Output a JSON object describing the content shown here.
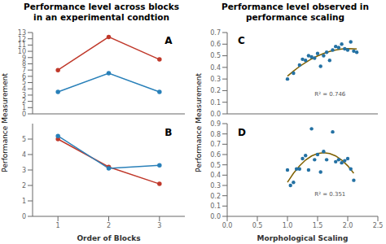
{
  "chart_data": [
    {
      "type": "line",
      "title": "Performance level across blocks\nin an experimental condtion",
      "ylabel": "Performance Measurement",
      "annotations": [
        "A"
      ],
      "tick_labels": "y",
      "series": [
        {
          "color": "#c0392b",
          "marker": "circle",
          "x": [
            1,
            2,
            3
          ],
          "values": [
            7.0,
            12.3,
            8.7
          ]
        },
        {
          "color": "#2980b9",
          "marker": "circle",
          "x": [
            1,
            2,
            3
          ],
          "values": [
            3.5,
            6.5,
            3.5
          ]
        }
      ],
      "xlim": [
        0.5,
        3.5
      ],
      "xticks": [
        1,
        2,
        3
      ],
      "ylim": [
        0,
        13
      ],
      "yticks": [
        0,
        1,
        2,
        3,
        4,
        5,
        6,
        7,
        8,
        9,
        10,
        11,
        12,
        13
      ]
    },
    {
      "type": "line",
      "xlabel": "Order of Blocks",
      "annotations": [
        "B"
      ],
      "series": [
        {
          "color": "#c0392b",
          "marker": "circle",
          "x": [
            1,
            2,
            3
          ],
          "values": [
            5.0,
            3.2,
            2.1
          ]
        },
        {
          "color": "#2980b9",
          "marker": "circle",
          "x": [
            1,
            2,
            3
          ],
          "values": [
            5.2,
            3.1,
            3.3
          ]
        }
      ],
      "xlim": [
        0.5,
        3.5
      ],
      "xticks": [
        1,
        2,
        3
      ],
      "ylim": [
        0,
        6
      ],
      "yticks": [
        0,
        1,
        2,
        3,
        4,
        5
      ]
    },
    {
      "type": "scatter",
      "title": "Performance level observed in\nperformance scaling",
      "ylabel": "Performance Measurement",
      "annotations": [
        "C",
        "R² = 0.746"
      ],
      "tick_labels": "y",
      "series": [
        {
          "type": "scatter",
          "color": "#2471a3",
          "x": [
            1.0,
            1.1,
            1.2,
            1.25,
            1.3,
            1.35,
            1.4,
            1.45,
            1.5,
            1.55,
            1.6,
            1.65,
            1.7,
            1.75,
            1.8,
            1.85,
            1.9,
            1.95,
            2.0,
            2.05,
            2.1,
            2.15
          ],
          "values": [
            0.3,
            0.35,
            0.42,
            0.47,
            0.46,
            0.5,
            0.49,
            0.48,
            0.52,
            0.41,
            0.5,
            0.53,
            0.46,
            0.55,
            0.58,
            0.57,
            0.6,
            0.56,
            0.55,
            0.62,
            0.54,
            0.53
          ]
        },
        {
          "type": "line",
          "color": "#7f6000",
          "x": [
            1.0,
            1.1,
            1.2,
            1.3,
            1.4,
            1.5,
            1.6,
            1.7,
            1.8,
            1.9,
            2.0,
            2.1,
            2.15
          ],
          "values": [
            0.3249,
            0.3686,
            0.4078,
            0.4425,
            0.4728,
            0.4987,
            0.5201,
            0.5371,
            0.5497,
            0.5578,
            0.5614,
            0.5607,
            0.5586
          ]
        }
      ],
      "xlim": [
        0,
        2.5
      ],
      "xticks": [
        {
          "value": 0,
          "label": "0.0"
        },
        0.5,
        {
          "value": 1,
          "label": "1.0"
        },
        1.5,
        {
          "value": 2,
          "label": "2.0"
        },
        2.5
      ],
      "ylim": [
        0,
        0.7
      ],
      "yticks": [
        {
          "value": 0,
          "label": "0.0"
        },
        0.1,
        0.2,
        0.3,
        0.4,
        0.5,
        0.6,
        0.7
      ]
    },
    {
      "type": "scatter",
      "xlabel": "Morphological Scaling",
      "annotations": [
        "D",
        "R² = 0.351"
      ],
      "series": [
        {
          "type": "scatter",
          "color": "#2471a3",
          "x": [
            1.0,
            1.05,
            1.1,
            1.15,
            1.2,
            1.25,
            1.3,
            1.35,
            1.4,
            1.45,
            1.5,
            1.55,
            1.6,
            1.65,
            1.75,
            1.8,
            1.85,
            1.9,
            1.95,
            2.0,
            2.05,
            2.1
          ],
          "values": [
            0.45,
            0.3,
            0.33,
            0.46,
            0.46,
            0.56,
            0.59,
            0.45,
            0.85,
            0.55,
            0.6,
            0.43,
            0.63,
            0.55,
            0.82,
            0.53,
            0.55,
            0.52,
            0.54,
            0.56,
            0.46,
            0.35
          ]
        },
        {
          "type": "line",
          "color": "#7f6000",
          "x": [
            1.0,
            1.1,
            1.2,
            1.3,
            1.4,
            1.5,
            1.6,
            1.7,
            1.8,
            1.9,
            2.0,
            2.1
          ],
          "values": [
            0.3306,
            0.4184,
            0.4902,
            0.5461,
            0.586,
            0.61,
            0.618,
            0.6101,
            0.5862,
            0.5464,
            0.4906,
            0.4188
          ]
        }
      ],
      "xlim": [
        0,
        2.5
      ],
      "xticks": [
        {
          "value": 0,
          "label": "0.0"
        },
        0.5,
        {
          "value": 1,
          "label": "1.0"
        },
        1.5,
        {
          "value": 2,
          "label": "2.0"
        },
        2.5
      ],
      "ylim": [
        0,
        0.9
      ],
      "yticks": [
        {
          "value": 0,
          "label": "0.0"
        },
        0.1,
        0.2,
        0.3,
        0.4,
        0.5,
        0.6,
        0.7,
        0.8,
        0.9
      ]
    }
  ]
}
